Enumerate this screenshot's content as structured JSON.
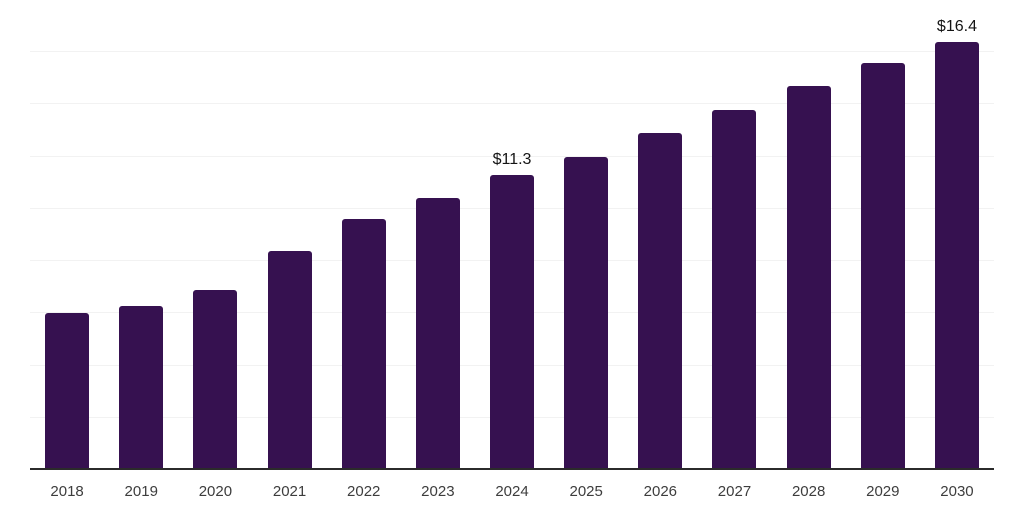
{
  "chart_data": {
    "type": "bar",
    "title": "",
    "xlabel": "",
    "ylabel": "",
    "categories": [
      "2018",
      "2019",
      "2020",
      "2021",
      "2022",
      "2023",
      "2024",
      "2025",
      "2026",
      "2027",
      "2028",
      "2029",
      "2030"
    ],
    "values": [
      6.0,
      6.3,
      6.9,
      8.4,
      9.6,
      10.4,
      11.3,
      12.0,
      12.9,
      13.8,
      14.7,
      15.6,
      16.4
    ],
    "bar_labels": [
      "",
      "",
      "",
      "",
      "",
      "",
      "$11.3",
      "",
      "",
      "",
      "",
      "",
      "$16.4"
    ],
    "ylim": [
      0,
      18
    ],
    "gridline_step": 2,
    "grid": true,
    "y_axis_labels_visible": false,
    "legend_position": "none",
    "colors": {
      "bar": "#361150",
      "gridline": "#f2f2f2",
      "axis_line": "#2b2b2b",
      "tick_label": "#3d3d3d",
      "data_label": "#141414"
    }
  }
}
